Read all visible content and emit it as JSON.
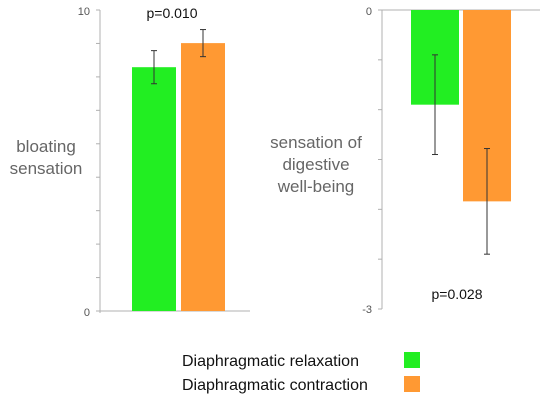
{
  "chart_data": [
    {
      "type": "bar",
      "ylabel": "bloating sensation",
      "ylabel_lines": [
        "bloating",
        "sensation"
      ],
      "ylim": [
        0,
        10
      ],
      "tick_labels": [
        "0",
        "10"
      ],
      "annotation": "p=0.010",
      "series": [
        {
          "name": "Diaphragmatic relaxation",
          "color": "#22ee22",
          "value": 8.1,
          "error": 0.55
        },
        {
          "name": "Diaphragmatic contraction",
          "color": "#ff9933",
          "value": 8.9,
          "error": 0.45
        }
      ]
    },
    {
      "type": "bar",
      "ylabel": "sensation of digestive well-being",
      "ylabel_lines": [
        "sensation of",
        "digestive",
        "well-being"
      ],
      "ylim": [
        -3,
        0
      ],
      "tick_labels": [
        "0",
        "-3"
      ],
      "annotation": "p=0.028",
      "series": [
        {
          "name": "Diaphragmatic relaxation",
          "color": "#22ee22",
          "value": -0.95,
          "error": 0.5
        },
        {
          "name": "Diaphragmatic contraction",
          "color": "#ff9933",
          "value": -1.92,
          "error": 0.53
        }
      ]
    }
  ],
  "legend": {
    "placement": "bottom",
    "items": [
      {
        "label": "Diaphragmatic relaxation",
        "color": "#22ee22"
      },
      {
        "label": "Diaphragmatic contraction",
        "color": "#ff9933"
      }
    ]
  }
}
